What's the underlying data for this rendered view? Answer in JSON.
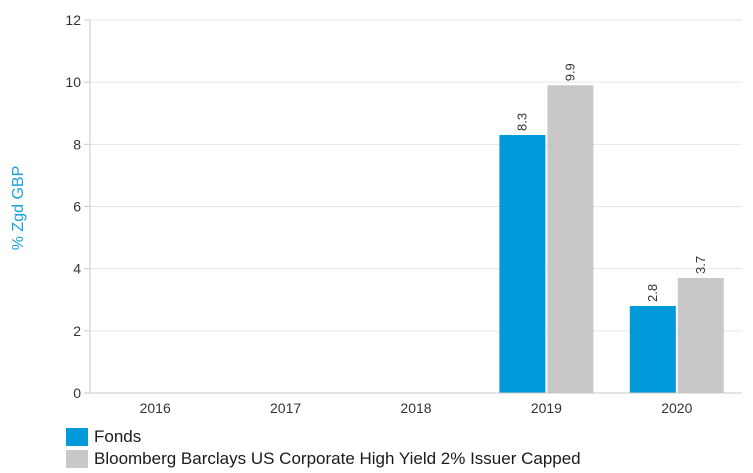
{
  "chart_data": {
    "type": "bar",
    "title": "",
    "xlabel": "",
    "ylabel": "% Zgd GBP",
    "categories": [
      "2016",
      "2017",
      "2018",
      "2019",
      "2020"
    ],
    "series": [
      {
        "name": "Fonds",
        "color": "#0099da",
        "values": [
          null,
          null,
          null,
          8.3,
          2.8
        ],
        "labels": [
          "",
          "",
          "",
          "8.3",
          "2.8"
        ]
      },
      {
        "name": "Bloomberg Barclays US Corporate High Yield 2% Issuer Capped",
        "color": "#c8c8c8",
        "values": [
          null,
          null,
          null,
          9.9,
          3.7
        ],
        "labels": [
          "",
          "",
          "",
          "9.9",
          "3.7"
        ]
      }
    ],
    "ylim": [
      0,
      12
    ],
    "yticks": [
      "0",
      "2",
      "4",
      "6",
      "8",
      "10",
      "12"
    ],
    "grid": true,
    "legend_position": "bottom-left"
  }
}
